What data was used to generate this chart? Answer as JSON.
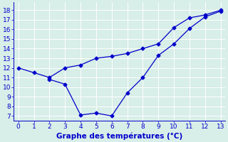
{
  "line1_x": [
    0,
    1,
    2,
    3,
    4,
    5,
    6,
    7,
    8,
    9,
    10,
    11,
    12,
    13
  ],
  "line1_y": [
    12,
    11.5,
    11.0,
    12.0,
    12.3,
    13.0,
    13.2,
    13.5,
    14.0,
    14.5,
    16.2,
    17.2,
    17.5,
    18.0
  ],
  "line2_x": [
    2,
    3,
    4,
    5,
    6,
    7,
    8,
    9,
    10,
    11,
    12,
    13
  ],
  "line2_y": [
    10.8,
    10.3,
    7.1,
    7.3,
    7.0,
    9.4,
    11.0,
    13.3,
    14.5,
    16.1,
    17.3,
    17.9
  ],
  "line_color": "#0000cc",
  "marker": "D",
  "markersize": 2.5,
  "linewidth": 0.9,
  "xlabel": "Graphe des températures (°C)",
  "xlim": [
    -0.3,
    13.3
  ],
  "ylim": [
    6.5,
    18.8
  ],
  "xticks": [
    0,
    1,
    2,
    3,
    4,
    5,
    6,
    7,
    8,
    9,
    10,
    11,
    12,
    13
  ],
  "yticks": [
    7,
    8,
    9,
    10,
    11,
    12,
    13,
    14,
    15,
    16,
    17,
    18
  ],
  "bg_color": "#d8eee8",
  "grid_color": "#ffffff",
  "tick_color": "#0000cc",
  "label_color": "#0000cc",
  "xlabel_fontsize": 7.5,
  "tick_fontsize": 6.5
}
